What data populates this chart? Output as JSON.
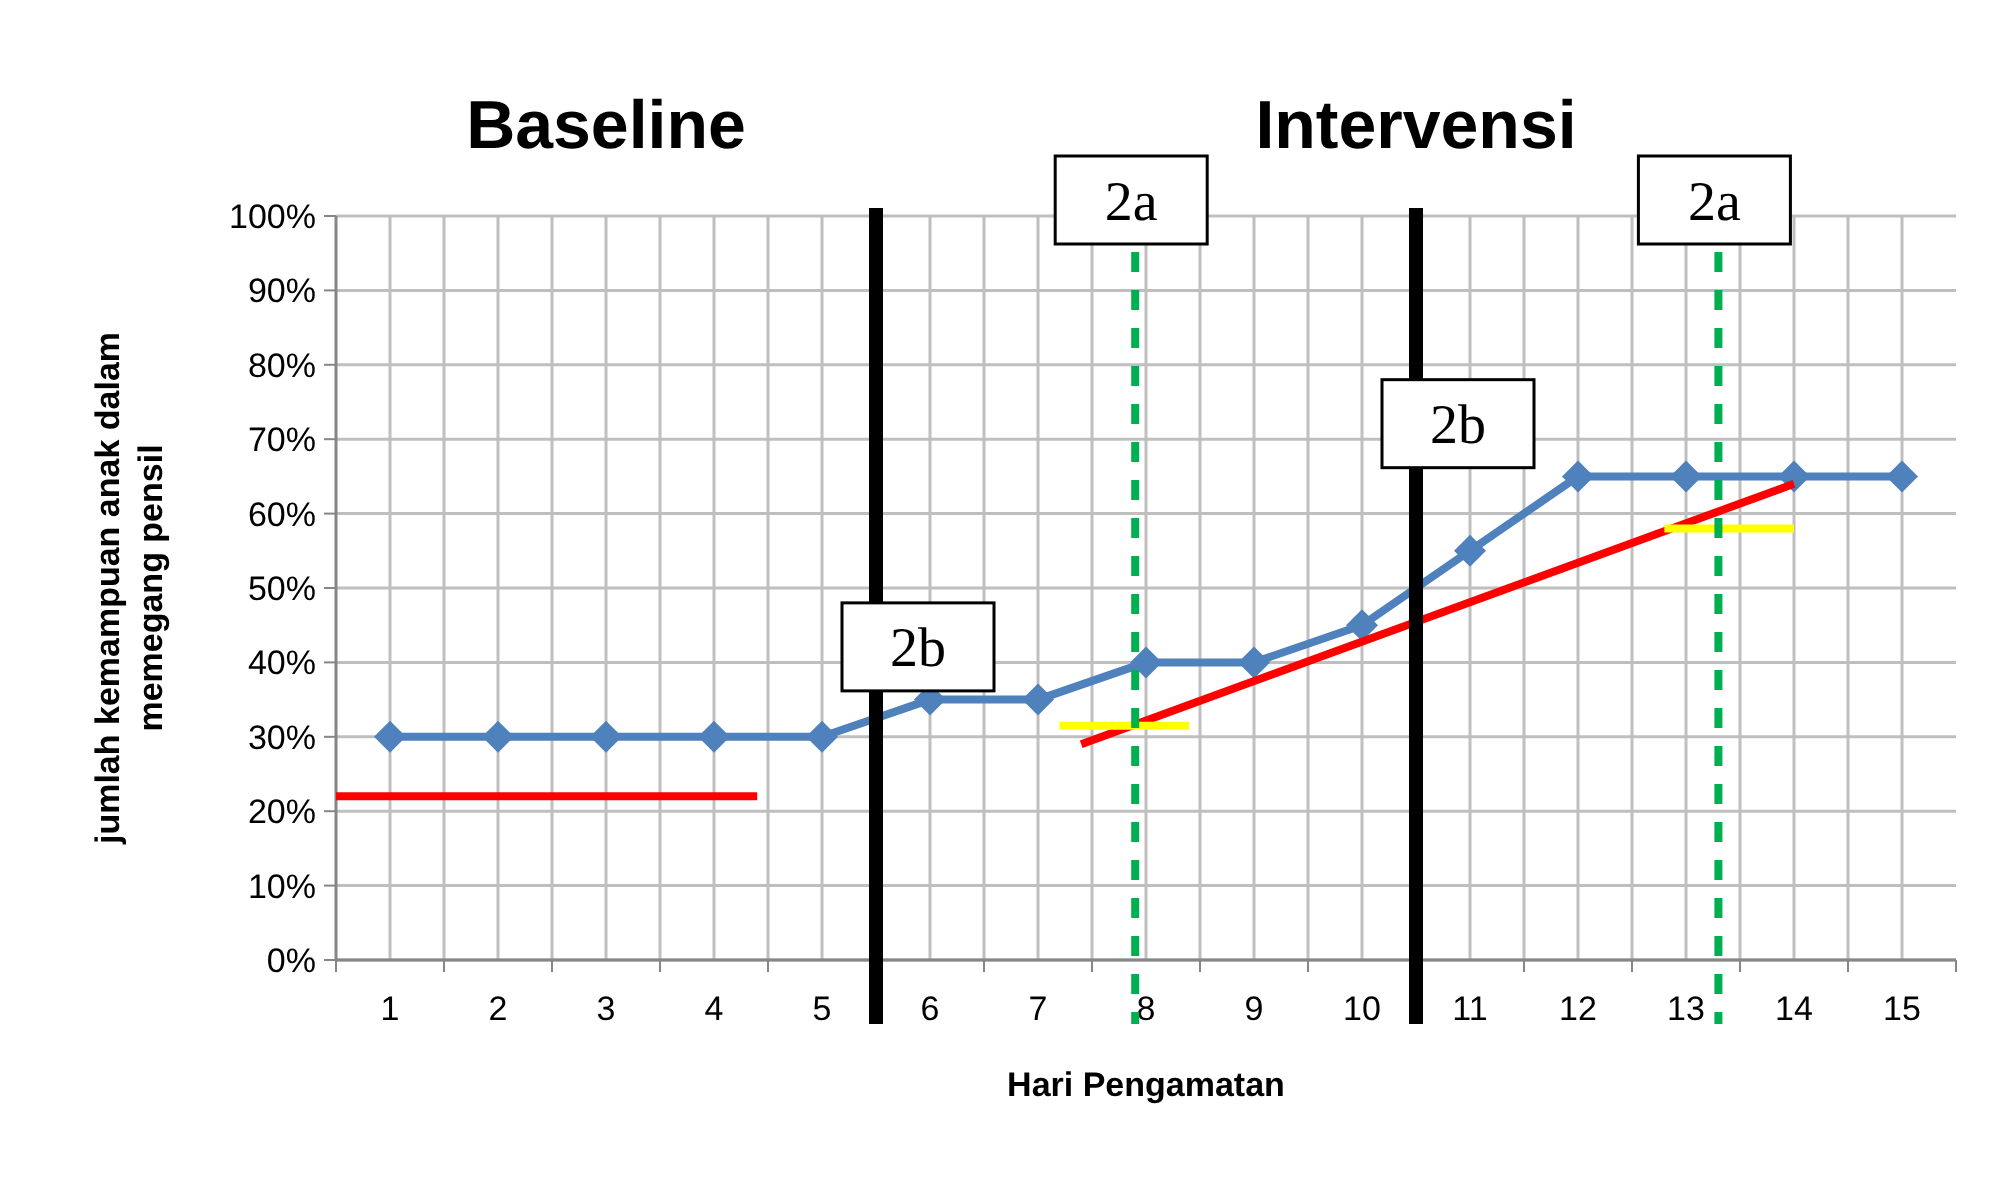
{
  "chart_data": {
    "type": "line",
    "xlabel": "Hari Pengamatan",
    "ylabel": "jumlah kemampuan anak dalam memegang pensil",
    "x": [
      1,
      2,
      3,
      4,
      5,
      6,
      7,
      8,
      9,
      10,
      11,
      12,
      13,
      14,
      15
    ],
    "xlim": [
      0.5,
      15.5
    ],
    "xticks": [
      1,
      2,
      3,
      4,
      5,
      6,
      7,
      8,
      9,
      10,
      11,
      12,
      13,
      14,
      15
    ],
    "ylim": [
      0,
      100
    ],
    "yticks": [
      {
        "value": 0,
        "label": "0%"
      },
      {
        "value": 10,
        "label": "10%"
      },
      {
        "value": 20,
        "label": "20%"
      },
      {
        "value": 30,
        "label": "30%"
      },
      {
        "value": 40,
        "label": "40%"
      },
      {
        "value": 50,
        "label": "50%"
      },
      {
        "value": 60,
        "label": "60%"
      },
      {
        "value": 70,
        "label": "70%"
      },
      {
        "value": 80,
        "label": "80%"
      },
      {
        "value": 90,
        "label": "90%"
      },
      {
        "value": 100,
        "label": "100%"
      }
    ],
    "series": [
      {
        "color": "#4f81bd",
        "values": [
          30,
          30,
          30,
          30,
          30,
          35,
          35,
          40,
          40,
          45,
          55,
          65,
          65,
          65,
          65
        ],
        "marker": "diamond"
      },
      {
        "type": "line",
        "color": "#ff0000",
        "x": [
          0.5,
          4.4
        ],
        "values": [
          22,
          22
        ],
        "marker": "none"
      },
      {
        "type": "line",
        "color": "#ff0000",
        "x": [
          7.4,
          14
        ],
        "values": [
          29,
          64
        ],
        "marker": "none"
      },
      {
        "type": "line",
        "color": "#ffff00",
        "x": [
          7.2,
          8.4
        ],
        "values": [
          31.5,
          31.5
        ],
        "marker": "none"
      },
      {
        "type": "line",
        "color": "#ffff00",
        "x": [
          12.8,
          14
        ],
        "values": [
          58,
          58
        ],
        "marker": "none"
      }
    ],
    "ref_lines": [
      {
        "axis": "x",
        "value": 5.5,
        "label": "2b",
        "color": "#000000",
        "line_style": "solid"
      },
      {
        "axis": "x",
        "value": 10.5,
        "label": "2b",
        "color": "#000000",
        "line_style": "solid"
      },
      {
        "axis": "x",
        "value": 7.9,
        "label": "2a",
        "color": "#00b050",
        "line_style": "dashed"
      },
      {
        "axis": "x",
        "value": 13.3,
        "label": "2a",
        "color": "#00b050",
        "line_style": "dashed"
      }
    ],
    "annotations": [
      "Baseline",
      "Intervensi"
    ],
    "grid": true
  }
}
